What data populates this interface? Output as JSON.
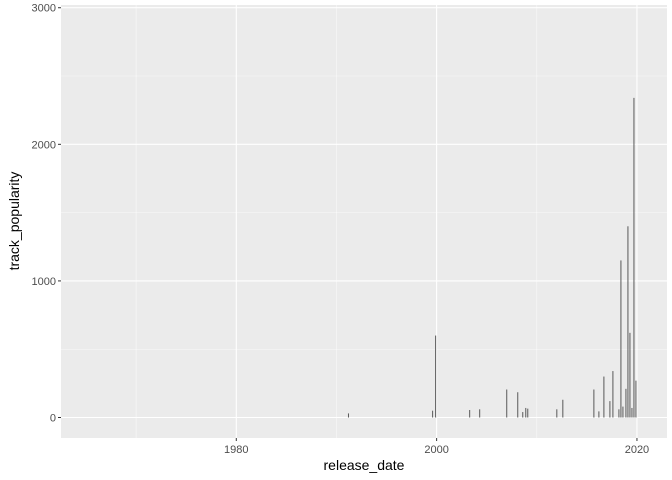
{
  "chart_data": {
    "type": "bar",
    "xlabel": "release_date",
    "ylabel": "track_popularity",
    "xlim": [
      1962.5,
      2023.0
    ],
    "ylim": [
      -150,
      3020
    ],
    "x_ticks": [
      1980,
      2000,
      2020
    ],
    "x_minor_ticks": [
      1970,
      1990,
      2010
    ],
    "y_ticks": [
      0,
      1000,
      2000,
      3000
    ],
    "y_minor_ticks": [
      500,
      1500,
      2500
    ],
    "grid": true,
    "legend": "none",
    "series": [
      {
        "x": [
          1991.2,
          1999.6,
          1999.9,
          2003.3,
          2004.3,
          2007.0,
          2008.1,
          2008.6,
          2008.9,
          2009.1,
          2012.0,
          2012.6,
          2015.7,
          2016.2,
          2016.7,
          2017.3,
          2017.6,
          2018.2,
          2018.4,
          2018.6,
          2018.9,
          2019.1,
          2019.3,
          2019.5,
          2019.7,
          2019.9
        ],
        "values": [
          30,
          50,
          600,
          55,
          60,
          205,
          185,
          40,
          70,
          65,
          60,
          130,
          205,
          45,
          300,
          120,
          340,
          60,
          1150,
          80,
          210,
          1400,
          620,
          70,
          2340,
          270
        ]
      }
    ]
  },
  "colors": {
    "panel": "#EBEBEB",
    "grid_major": "#FFFFFF",
    "bar": "#595959",
    "tick": "#333333",
    "tick_text": "#4D4D4D"
  }
}
